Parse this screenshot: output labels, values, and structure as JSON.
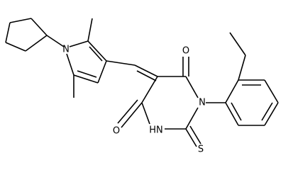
{
  "atoms": [
    {
      "label": "N"
    },
    {
      "label": "O"
    },
    {
      "label": "N"
    },
    {
      "label": "O"
    },
    {
      "label": "HN"
    },
    {
      "label": "S"
    }
  ]
}
